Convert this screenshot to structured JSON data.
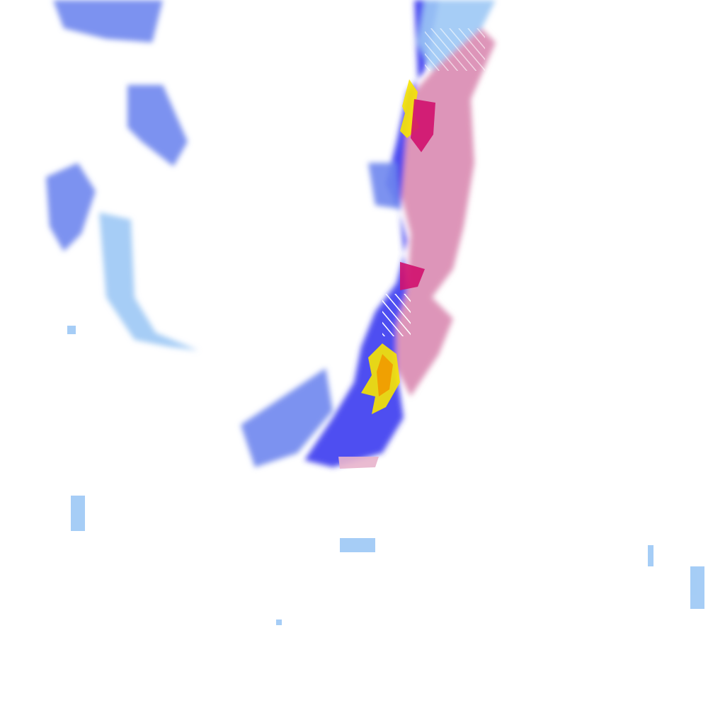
{
  "map": {
    "type": "precipitation radar tile",
    "background": "#ffffff",
    "colors": {
      "light_rain": "#9cc8f5",
      "moderate_rain": "#6f86ee",
      "heavy_rain": "#3a3af0",
      "mixed_light": "#e8b4cc",
      "mixed": "#d783ad",
      "mixed_heavy": "#d0116e",
      "intense": "#f7e600",
      "very_intense": "#f29a00"
    }
  }
}
